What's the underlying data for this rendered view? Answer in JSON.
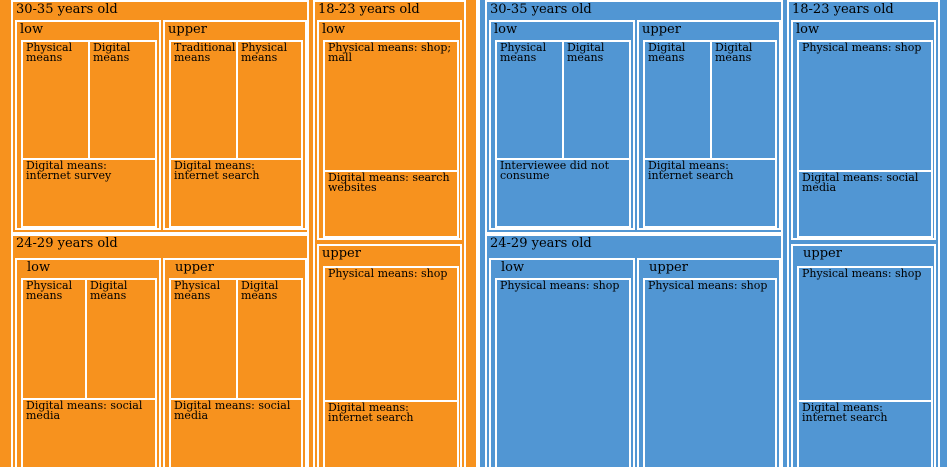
{
  "colors": {
    "left": "#f7921e",
    "right": "#5196d3",
    "border": "#ffffff",
    "text": "#000000"
  },
  "left": {
    "a3035": {
      "label": "30-35 years old",
      "low": {
        "label": "low",
        "c1": "Physical means",
        "c2": "Digital means",
        "bottom": "Digital means: internet survey"
      },
      "upper": {
        "label": "upper",
        "c1": "Traditional means",
        "c2": "Physical means",
        "bottom": "Digital means: internet search"
      }
    },
    "a2429": {
      "label": "24-29 years old",
      "low": {
        "label": "low",
        "c1": "Physical means",
        "c2": "Digital means",
        "bottom": "Digital means: social media"
      },
      "upper": {
        "label": "upper",
        "c1": "Physical means",
        "c2": "Digital means",
        "bottom": "Digital means: social media"
      }
    },
    "a1823": {
      "label": "18-23 years old",
      "low": {
        "label": "low",
        "top": "Physical means: shop; mall",
        "bottom": "Digital means: search websites"
      },
      "upper": {
        "label": "upper",
        "top": "Physical means: shop",
        "bottom": "Digital means: internet search"
      }
    }
  },
  "right": {
    "a3035": {
      "label": "30-35 years old",
      "low": {
        "label": "low",
        "c1": "Physical means",
        "c2": "Digital means",
        "bottom": "Interviewee did not consume"
      },
      "upper": {
        "label": "upper",
        "c1": "Digital means",
        "c2": "Digital means",
        "bottom": "Digital means: internet search"
      }
    },
    "a2429": {
      "label": "24-29 years old",
      "low": {
        "label": "low",
        "top": "Physical means: shop"
      },
      "upper": {
        "label": "upper",
        "top": "Physical means: shop"
      }
    },
    "a1823": {
      "label": "18-23 years old",
      "low": {
        "label": "low",
        "top": "Physical means: shop",
        "bottom": "Digital means: social media"
      },
      "upper": {
        "label": "upper",
        "top": "Physical means: shop",
        "bottom": "Digital means: internet search"
      }
    }
  }
}
